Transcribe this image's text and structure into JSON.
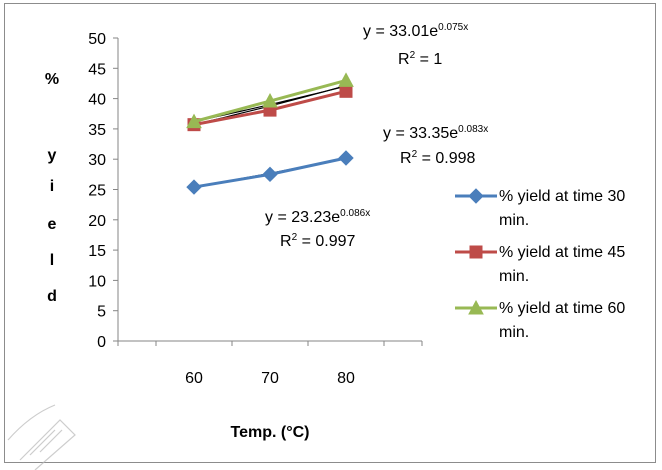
{
  "chart_data": {
    "type": "line",
    "title": "",
    "xlabel": "Temp. (°C)",
    "ylabel_chars": [
      "%",
      "y",
      "i",
      "e",
      "l",
      "d"
    ],
    "x": [
      60,
      70,
      80
    ],
    "xlim": [
      50,
      90
    ],
    "ylim": [
      0,
      50
    ],
    "yticks": [
      0,
      5,
      10,
      15,
      20,
      25,
      30,
      35,
      40,
      45,
      50
    ],
    "xticks": [
      "60",
      "70",
      "80"
    ],
    "legend_position": "right",
    "series": [
      {
        "name": "% yield at time 30 min.",
        "color": "#4a7ebb",
        "marker": "diamond",
        "values": [
          25.4,
          27.5,
          30.2
        ]
      },
      {
        "name": "% yield at time 45 min.",
        "color": "#be4b48",
        "marker": "square",
        "values": [
          35.7,
          38.1,
          41.2
        ]
      },
      {
        "name": "% yield at time 60 min.",
        "color": "#98b954",
        "marker": "triangle",
        "values": [
          36.2,
          39.6,
          43.0
        ]
      }
    ],
    "trendlines": [
      {
        "series": "% yield at time 30 min.",
        "eq_base": "y = 23.23e",
        "eq_exp": "0.086x",
        "r2_base": "R",
        "r2_exp": "2",
        "r2_value": " = 0.997",
        "color": "#000000"
      },
      {
        "series": "% yield at time 45 min.",
        "eq_base": "y = 33.35e",
        "eq_exp": "0.083x",
        "r2_base": "R",
        "r2_exp": "2",
        "r2_value": " = 0.998",
        "color": "#000000"
      },
      {
        "series": "% yield at time 60 min.",
        "eq_base": "y = 33.01e",
        "eq_exp": "0.075x",
        "r2_base": "R",
        "r2_exp": "2",
        "r2_value": " = 1",
        "color": "#000000"
      }
    ],
    "legend": {
      "items": [
        {
          "line1": "% yield at time 30",
          "line2": "min."
        },
        {
          "line1": "% yield at time 45",
          "line2": "min."
        },
        {
          "line1": "% yield at time 60",
          "line2": "min."
        }
      ]
    }
  }
}
